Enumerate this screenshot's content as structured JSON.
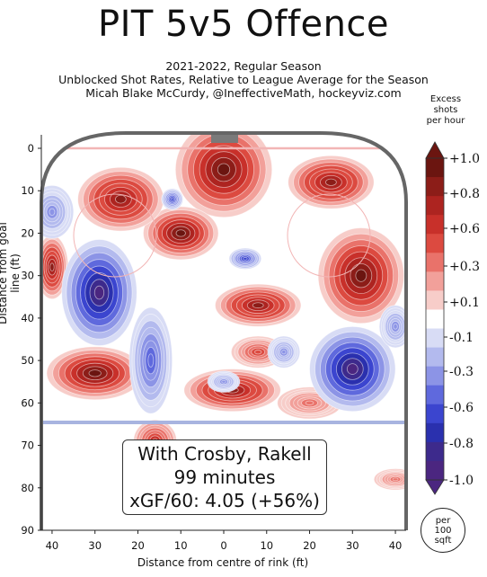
{
  "title": "PIT 5v5 Offence",
  "subtitle_lines": [
    "2021-2022, Regular Season",
    "Unblocked Shot Rates, Relative to League Average for the Season",
    "Micah Blake McCurdy, @IneffectiveMath, hockeyviz.com"
  ],
  "colorbar": {
    "title_lines": [
      "Excess",
      "shots",
      "per hour"
    ],
    "tick_labels": [
      "+1.0",
      "+0.8",
      "+0.6",
      "+0.3",
      "+0.1",
      "-0.1",
      "-0.3",
      "-0.6",
      "-0.8",
      "-1.0"
    ],
    "colors": [
      "#6b1510",
      "#8c1d18",
      "#ad2420",
      "#c8302a",
      "#dc4a40",
      "#e9726a",
      "#f2a09a",
      "#f7cdc9",
      "#ffffff",
      "#d8dcf5",
      "#b3baee",
      "#8c94e6",
      "#5f69dd",
      "#3b45cf",
      "#2a30ae",
      "#3d2a8c",
      "#4b2680"
    ],
    "unit_badge_lines": [
      "per",
      "100",
      "sqft"
    ]
  },
  "info_box": {
    "line1": "With Crosby, Rakell",
    "line2": "99 minutes",
    "line3": "xGF/60: 4.05 (+56%)"
  },
  "chart_data": {
    "type": "heatmap",
    "title": "PIT 5v5 Offence",
    "xlabel": "Distance from centre of rink (ft)",
    "ylabel": "Distance from goal line (ft)",
    "x_ticks": [
      40,
      30,
      20,
      10,
      0,
      10,
      20,
      30,
      40
    ],
    "x_range": [
      -42.5,
      42.5
    ],
    "y_ticks": [
      0,
      10,
      20,
      30,
      40,
      50,
      60,
      70,
      80,
      90
    ],
    "y_range": [
      -3,
      90
    ],
    "color_range": [
      -1.0,
      1.0
    ],
    "hotspots": [
      {
        "x": 0,
        "y": 5,
        "value": 1.0,
        "rx": 9,
        "ry": 9
      },
      {
        "x": -10,
        "y": 20,
        "value": 1.0,
        "rx": 7,
        "ry": 5
      },
      {
        "x": -24,
        "y": 12,
        "value": 0.8,
        "rx": 8,
        "ry": 6
      },
      {
        "x": 25,
        "y": 8,
        "value": 0.8,
        "rx": 8,
        "ry": 5
      },
      {
        "x": 32,
        "y": 30,
        "value": 1.0,
        "rx": 8,
        "ry": 9
      },
      {
        "x": 8,
        "y": 37,
        "value": 0.8,
        "rx": 8,
        "ry": 4
      },
      {
        "x": -30,
        "y": 53,
        "value": 1.0,
        "rx": 9,
        "ry": 5
      },
      {
        "x": 2,
        "y": 57,
        "value": 0.8,
        "rx": 9,
        "ry": 4
      },
      {
        "x": 8,
        "y": 48,
        "value": 0.5,
        "rx": 5,
        "ry": 3
      },
      {
        "x": -40,
        "y": 28,
        "value": 0.8,
        "rx": 3,
        "ry": 6
      },
      {
        "x": -16,
        "y": 69,
        "value": 0.6,
        "rx": 4,
        "ry": 4
      },
      {
        "x": 20,
        "y": 60,
        "value": 0.3,
        "rx": 6,
        "ry": 3
      },
      {
        "x": 40,
        "y": 78,
        "value": 0.3,
        "rx": 4,
        "ry": 2
      },
      {
        "x": -29,
        "y": 34,
        "value": -0.9,
        "rx": 7,
        "ry": 10
      },
      {
        "x": 30,
        "y": 52,
        "value": -1.0,
        "rx": 8,
        "ry": 8
      },
      {
        "x": -17,
        "y": 50,
        "value": -0.5,
        "rx": 4,
        "ry": 10
      },
      {
        "x": -40,
        "y": 15,
        "value": -0.3,
        "rx": 4,
        "ry": 5
      },
      {
        "x": 14,
        "y": 48,
        "value": -0.3,
        "rx": 3,
        "ry": 3
      },
      {
        "x": 5,
        "y": 26,
        "value": -0.6,
        "rx": 3,
        "ry": 2
      },
      {
        "x": -12,
        "y": 12,
        "value": -0.6,
        "rx": 2,
        "ry": 2
      },
      {
        "x": 0,
        "y": 55,
        "value": -0.3,
        "rx": 3,
        "ry": 2
      },
      {
        "x": 40,
        "y": 42,
        "value": -0.3,
        "rx": 3,
        "ry": 4
      }
    ]
  }
}
